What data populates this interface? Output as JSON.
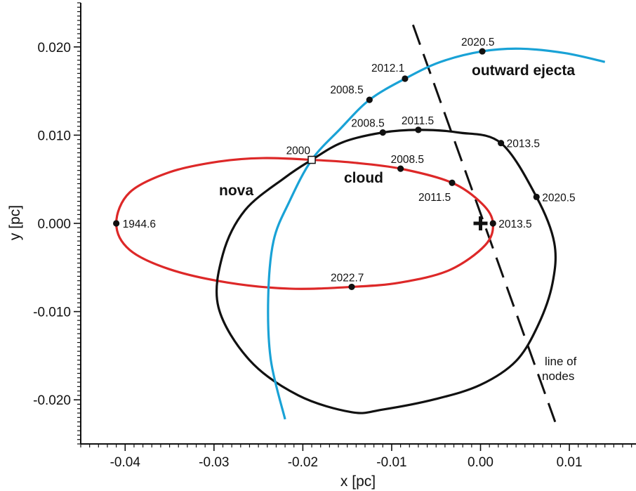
{
  "chart_data": {
    "type": "line",
    "xlabel": "x [pc]",
    "ylabel": "y [pc]",
    "xlim": [
      -0.045,
      0.0175
    ],
    "ylim": [
      -0.025,
      0.025
    ],
    "x_ticks": [
      {
        "v": -0.04,
        "label": "-0.04"
      },
      {
        "v": -0.03,
        "label": "-0.03"
      },
      {
        "v": -0.02,
        "label": "-0.02"
      },
      {
        "v": -0.01,
        "label": "-0.01"
      },
      {
        "v": 0.0,
        "label": "0.00"
      },
      {
        "v": 0.01,
        "label": "0.01"
      }
    ],
    "y_ticks": [
      {
        "v": 0.02,
        "label": "0.020"
      },
      {
        "v": 0.01,
        "label": "0.010"
      },
      {
        "v": 0.0,
        "label": "0.000"
      },
      {
        "v": -0.01,
        "label": "-0.010"
      },
      {
        "v": -0.02,
        "label": "-0.020"
      }
    ],
    "grid": false,
    "series": [
      {
        "name": "nova",
        "color": "#dd2828",
        "x": [
          -0.041,
          -0.0395,
          -0.035,
          -0.0295,
          -0.0245,
          -0.019,
          -0.0145,
          -0.009,
          -0.0032,
          0.0002,
          0.0014,
          0.0005,
          -0.0035,
          -0.009,
          -0.0145,
          -0.0215,
          -0.0285,
          -0.035,
          -0.0395,
          -0.041
        ],
        "y": [
          0.0,
          0.0035,
          0.0058,
          0.007,
          0.0074,
          0.0072,
          0.0069,
          0.0062,
          0.0046,
          0.0022,
          0.0,
          -0.0025,
          -0.0053,
          -0.0067,
          -0.0072,
          -0.0074,
          -0.0067,
          -0.0052,
          -0.003,
          0.0
        ],
        "labeled_points": [
          {
            "x": -0.041,
            "y": 0.0,
            "label": "1944.6"
          },
          {
            "x": -0.019,
            "y": 0.0072,
            "label": "2000"
          },
          {
            "x": -0.009,
            "y": 0.0062,
            "label": "2008.5"
          },
          {
            "x": -0.0032,
            "y": 0.0046,
            "label": "2011.5"
          },
          {
            "x": 0.0014,
            "y": 0.0,
            "label": "2013.5"
          },
          {
            "x": -0.0145,
            "y": -0.0072,
            "label": "2022.7"
          }
        ]
      },
      {
        "name": "cloud",
        "color": "#111111",
        "x": [
          -0.019,
          -0.0155,
          -0.011,
          -0.007,
          -0.0025,
          0.0023,
          0.0063,
          0.0083,
          0.0081,
          0.0065,
          0.004,
          0.0,
          -0.005,
          -0.011,
          -0.0145,
          -0.0205,
          -0.026,
          -0.0295,
          -0.029,
          -0.0265,
          -0.022,
          -0.019
        ],
        "y": [
          0.0072,
          0.0092,
          0.0103,
          0.0106,
          0.0103,
          0.0091,
          0.003,
          -0.0022,
          -0.0068,
          -0.0115,
          -0.0156,
          -0.0183,
          -0.0199,
          -0.0211,
          -0.0214,
          -0.0195,
          -0.0155,
          -0.0095,
          -0.0035,
          0.0015,
          0.0052,
          0.0072
        ],
        "labeled_points": [
          {
            "x": -0.011,
            "y": 0.0103,
            "label": "2008.5"
          },
          {
            "x": -0.007,
            "y": 0.0106,
            "label": "2011.5"
          },
          {
            "x": 0.0023,
            "y": 0.0091,
            "label": "2013.5"
          },
          {
            "x": 0.0063,
            "y": 0.003,
            "label": "2020.5"
          }
        ]
      },
      {
        "name": "outward ejecta",
        "color": "#19a2d6",
        "x": [
          -0.022,
          -0.0236,
          -0.0239,
          -0.0233,
          -0.0215,
          -0.019,
          -0.0158,
          -0.0125,
          -0.0085,
          -0.0045,
          0.0002,
          0.0045,
          0.0095,
          0.014
        ],
        "y": [
          -0.0222,
          -0.0155,
          -0.0085,
          -0.002,
          0.0025,
          0.0072,
          0.0107,
          0.014,
          0.0164,
          0.0183,
          0.0195,
          0.0198,
          0.0193,
          0.0183
        ],
        "labeled_points": [
          {
            "x": -0.019,
            "y": 0.0072,
            "label": "2000"
          },
          {
            "x": -0.0125,
            "y": 0.014,
            "label": "2008.5"
          },
          {
            "x": -0.0085,
            "y": 0.0164,
            "label": "2012.1"
          },
          {
            "x": 0.0002,
            "y": 0.0195,
            "label": "2020.5"
          }
        ]
      }
    ],
    "line_of_nodes": {
      "x1": -0.0076,
      "y1": 0.0225,
      "x2": 0.0084,
      "y2": -0.0225,
      "label_lines": [
        "line of",
        "nodes"
      ]
    },
    "center_marker": {
      "x": 0.0,
      "y": 0.0
    },
    "start_marker": {
      "x": -0.019,
      "y": 0.0072
    }
  }
}
